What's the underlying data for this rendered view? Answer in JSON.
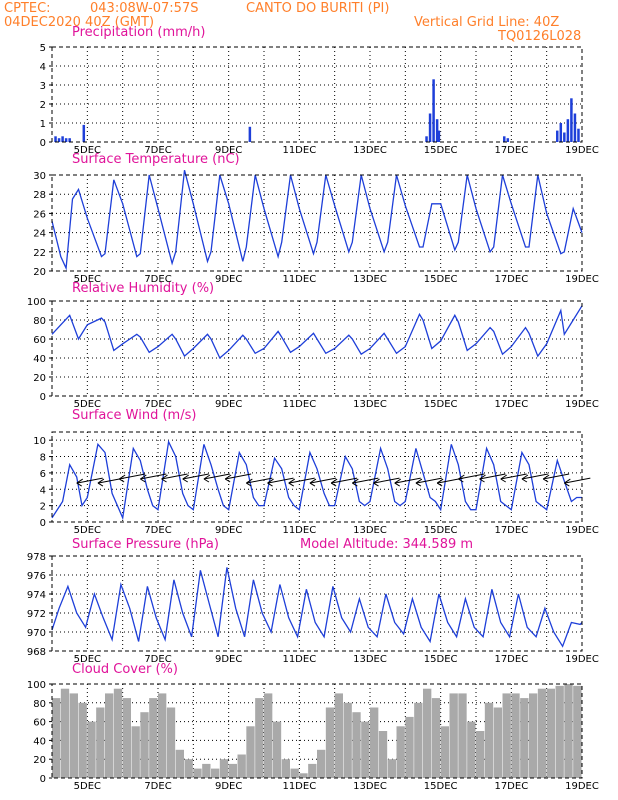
{
  "header": {
    "source": "CPTEC:",
    "coords": "043:08W-07:57S",
    "location": "CANTO DO BURITI (PI)",
    "run": "04DEC2020 40Z (GMT)",
    "grid_note": "Vertical Grid Line: 40Z",
    "model": "TQ0126L028"
  },
  "colors": {
    "header": "#ff7f2a",
    "panel_title": "#e0149a",
    "series": "#1e3fd9",
    "cloud": "#a9a9a9",
    "wind_arrow": "#000000"
  },
  "chart_data": [
    {
      "id": "precip",
      "type": "bar",
      "title": "Precipitation (mm/h)",
      "ylim": [
        0,
        5
      ],
      "yticks": [
        0,
        1,
        2,
        3,
        4,
        5
      ],
      "xticks": [
        "5DEC",
        "7DEC",
        "9DEC",
        "11DEC",
        "13DEC",
        "15DEC",
        "17DEC",
        "19DEC"
      ],
      "x": [
        4.1,
        4.2,
        4.3,
        4.4,
        4.5,
        4.9,
        9.6,
        14.6,
        14.7,
        14.8,
        14.9,
        14.95,
        16.8,
        16.9,
        18.3,
        18.4,
        18.5,
        18.6,
        18.7,
        18.8,
        18.9
      ],
      "values": [
        0.3,
        0.2,
        0.3,
        0.2,
        0.2,
        0.9,
        0.8,
        0.3,
        1.5,
        3.3,
        1.2,
        0.6,
        0.3,
        0.2,
        0.6,
        1.0,
        0.5,
        1.2,
        2.3,
        1.5,
        0.7
      ],
      "grid": true
    },
    {
      "id": "temp",
      "type": "line",
      "title": "Surface Temperature (nC)",
      "ylim": [
        20,
        30
      ],
      "yticks": [
        20,
        22,
        24,
        26,
        28,
        30
      ],
      "xticks": [
        "5DEC",
        "7DEC",
        "9DEC",
        "11DEC",
        "13DEC",
        "15DEC",
        "17DEC",
        "19DEC"
      ],
      "x": [
        4.0,
        4.25,
        4.4,
        4.58,
        4.75,
        5.0,
        5.4,
        5.5,
        5.75,
        6.0,
        6.4,
        6.5,
        6.75,
        7.0,
        7.4,
        7.5,
        7.75,
        8.0,
        8.4,
        8.5,
        8.75,
        9.0,
        9.4,
        9.5,
        9.75,
        10.0,
        10.4,
        10.5,
        10.75,
        11.0,
        11.4,
        11.5,
        11.75,
        12.0,
        12.4,
        12.5,
        12.75,
        13.0,
        13.4,
        13.5,
        13.75,
        14.0,
        14.4,
        14.5,
        14.75,
        15.0,
        15.4,
        15.5,
        15.75,
        16.0,
        16.4,
        16.5,
        16.75,
        17.0,
        17.4,
        17.5,
        17.75,
        18.0,
        18.4,
        18.5,
        18.75,
        19.0
      ],
      "values": [
        25.2,
        21.5,
        20.3,
        27.5,
        28.5,
        25.5,
        21.5,
        21.8,
        29.5,
        27.0,
        21.5,
        21.8,
        30.0,
        26.5,
        20.8,
        22.0,
        30.5,
        27.0,
        21.0,
        22.0,
        30.0,
        27.0,
        21.0,
        22.5,
        30.0,
        26.5,
        21.5,
        23.0,
        30.0,
        26.5,
        21.8,
        23.0,
        30.0,
        26.8,
        22.0,
        23.0,
        30.0,
        26.5,
        22.0,
        23.0,
        30.0,
        26.8,
        22.5,
        22.5,
        27.0,
        27.0,
        22.2,
        23.0,
        30.0,
        26.5,
        22.0,
        22.5,
        30.0,
        27.0,
        22.5,
        22.5,
        30.0,
        26.0,
        21.8,
        22.0,
        26.5,
        24.0
      ],
      "grid": true
    },
    {
      "id": "rh",
      "type": "line",
      "title": "Relative Humidity (%)",
      "ylim": [
        0,
        100
      ],
      "yticks": [
        0,
        20,
        40,
        60,
        80,
        100
      ],
      "xticks": [
        "5DEC",
        "7DEC",
        "9DEC",
        "11DEC",
        "13DEC",
        "15DEC",
        "17DEC",
        "19DEC"
      ],
      "x": [
        4.0,
        4.25,
        4.5,
        4.75,
        5.0,
        5.4,
        5.5,
        5.75,
        6.0,
        6.4,
        6.5,
        6.75,
        7.0,
        7.4,
        7.5,
        7.75,
        8.0,
        8.4,
        8.5,
        8.75,
        9.0,
        9.4,
        9.5,
        9.75,
        10.0,
        10.4,
        10.5,
        10.75,
        11.0,
        11.4,
        11.5,
        11.75,
        12.0,
        12.4,
        12.5,
        12.75,
        13.0,
        13.4,
        13.5,
        13.75,
        14.0,
        14.4,
        14.5,
        14.75,
        15.0,
        15.4,
        15.5,
        15.75,
        16.0,
        16.4,
        16.5,
        16.75,
        17.0,
        17.4,
        17.5,
        17.75,
        18.0,
        18.4,
        18.5,
        18.75,
        19.0
      ],
      "values": [
        65,
        75,
        85,
        60,
        75,
        82,
        78,
        48,
        55,
        65,
        62,
        46,
        52,
        65,
        60,
        42,
        50,
        65,
        60,
        40,
        48,
        64,
        60,
        45,
        50,
        68,
        62,
        46,
        52,
        66,
        60,
        45,
        50,
        64,
        60,
        44,
        50,
        66,
        60,
        45,
        52,
        86,
        80,
        50,
        58,
        85,
        78,
        48,
        55,
        72,
        68,
        44,
        52,
        72,
        66,
        42,
        55,
        90,
        65,
        80,
        95
      ],
      "grid": true
    },
    {
      "id": "wind",
      "type": "line",
      "title": "Surface Wind (m/s)",
      "ylim": [
        0,
        11
      ],
      "yticks": [
        0,
        2,
        4,
        6,
        8,
        10
      ],
      "xticks": [
        "5DEC",
        "7DEC",
        "9DEC",
        "11DEC",
        "13DEC",
        "15DEC",
        "17DEC",
        "19DEC"
      ],
      "x": [
        4.0,
        4.3,
        4.5,
        4.7,
        4.85,
        5.0,
        5.3,
        5.5,
        5.7,
        5.85,
        6.0,
        6.3,
        6.5,
        6.7,
        6.85,
        7.0,
        7.3,
        7.5,
        7.7,
        7.85,
        8.0,
        8.3,
        8.5,
        8.7,
        8.85,
        9.0,
        9.3,
        9.5,
        9.7,
        9.85,
        10.0,
        10.3,
        10.5,
        10.7,
        10.85,
        11.0,
        11.3,
        11.5,
        11.7,
        11.85,
        12.0,
        12.3,
        12.5,
        12.7,
        12.85,
        13.0,
        13.3,
        13.5,
        13.7,
        13.85,
        14.0,
        14.3,
        14.5,
        14.7,
        14.85,
        15.0,
        15.3,
        15.5,
        15.7,
        15.85,
        16.0,
        16.3,
        16.5,
        16.7,
        16.85,
        17.0,
        17.3,
        17.5,
        17.7,
        17.85,
        18.0,
        18.3,
        18.5,
        18.7,
        18.85,
        19.0
      ],
      "values": [
        0.5,
        2.5,
        7.0,
        5.5,
        2.0,
        3.0,
        9.5,
        8.5,
        3.5,
        2.0,
        0.5,
        9.0,
        7.5,
        4.0,
        2.0,
        1.5,
        9.8,
        8.0,
        3.5,
        2.0,
        1.5,
        9.5,
        7.0,
        4.0,
        2.0,
        1.5,
        8.5,
        7.0,
        3.0,
        2.0,
        2.0,
        7.8,
        6.5,
        3.0,
        2.0,
        1.5,
        8.5,
        6.5,
        3.5,
        2.0,
        2.0,
        8.0,
        6.5,
        2.5,
        2.0,
        2.5,
        9.0,
        6.5,
        2.5,
        2.0,
        2.5,
        9.0,
        6.0,
        3.0,
        2.5,
        1.5,
        9.5,
        7.0,
        2.5,
        1.5,
        1.5,
        9.0,
        7.0,
        2.5,
        2.0,
        1.5,
        8.5,
        7.0,
        2.5,
        2.0,
        1.5,
        7.5,
        5.0,
        2.5,
        3.0,
        3.0
      ],
      "arrows_x": [
        4.7,
        5.3,
        5.9,
        6.5,
        7.1,
        7.7,
        8.3,
        8.9,
        9.5,
        10.1,
        10.7,
        11.3,
        11.9,
        12.5,
        13.1,
        13.7,
        14.3,
        14.9,
        15.5,
        16.1,
        16.7,
        17.3,
        17.9,
        18.5
      ],
      "arrows_y": [
        5.0,
        5.0,
        5.5,
        5.5,
        5.5,
        5.5,
        5.5,
        5.5,
        5.0,
        5.0,
        5.0,
        5.0,
        5.0,
        5.0,
        5.0,
        5.0,
        5.0,
        5.0,
        5.5,
        5.5,
        5.5,
        5.5,
        5.5,
        5.0
      ],
      "grid": true
    },
    {
      "id": "pres",
      "type": "line",
      "title": "Surface Pressure (hPa)",
      "annotation": "Model Altitude: 344.589 m",
      "ylim": [
        968,
        978
      ],
      "yticks": [
        968,
        970,
        972,
        974,
        976,
        978
      ],
      "xticks": [
        "5DEC",
        "7DEC",
        "9DEC",
        "11DEC",
        "13DEC",
        "15DEC",
        "17DEC",
        "19DEC"
      ],
      "x": [
        4.0,
        4.2,
        4.45,
        4.7,
        4.95,
        5.2,
        5.45,
        5.7,
        5.95,
        6.2,
        6.45,
        6.7,
        6.95,
        7.2,
        7.45,
        7.7,
        7.95,
        8.2,
        8.45,
        8.7,
        8.95,
        9.2,
        9.45,
        9.7,
        9.95,
        10.2,
        10.45,
        10.7,
        10.95,
        11.2,
        11.45,
        11.7,
        11.95,
        12.2,
        12.45,
        12.7,
        12.95,
        13.2,
        13.45,
        13.7,
        13.95,
        14.2,
        14.45,
        14.7,
        14.95,
        15.2,
        15.45,
        15.7,
        15.95,
        16.2,
        16.45,
        16.7,
        16.95,
        17.2,
        17.45,
        17.7,
        17.95,
        18.2,
        18.45,
        18.7,
        18.95,
        19.0
      ],
      "values": [
        970.2,
        972.5,
        974.8,
        972.0,
        970.5,
        974.0,
        971.5,
        969.2,
        975.0,
        972.5,
        969.0,
        974.8,
        971.5,
        969.2,
        975.5,
        972.0,
        969.5,
        976.5,
        973.0,
        969.5,
        976.8,
        972.5,
        969.5,
        975.5,
        972.0,
        970.0,
        975.0,
        971.5,
        969.5,
        974.5,
        971.0,
        969.5,
        974.8,
        971.5,
        970.0,
        973.5,
        970.5,
        969.5,
        974.0,
        971.0,
        969.8,
        973.5,
        970.5,
        969.0,
        974.0,
        971.0,
        969.5,
        973.5,
        970.5,
        969.5,
        974.5,
        971.0,
        969.5,
        974.0,
        970.5,
        969.5,
        972.5,
        970.0,
        968.5,
        971.0,
        970.8,
        971.0
      ],
      "grid": true
    },
    {
      "id": "cloud",
      "type": "bar",
      "title": "Cloud Cover (%)",
      "ylim": [
        0,
        100
      ],
      "yticks": [
        0,
        20,
        40,
        60,
        80,
        100
      ],
      "xticks": [
        "5DEC",
        "7DEC",
        "9DEC",
        "11DEC",
        "13DEC",
        "15DEC",
        "17DEC",
        "19DEC"
      ],
      "x": [
        4.0,
        4.25,
        4.5,
        4.75,
        5.0,
        5.25,
        5.5,
        5.75,
        6.0,
        6.25,
        6.5,
        6.75,
        7.0,
        7.25,
        7.5,
        7.75,
        8.0,
        8.25,
        8.5,
        8.75,
        9.0,
        9.25,
        9.5,
        9.75,
        10.0,
        10.25,
        10.5,
        10.75,
        11.0,
        11.25,
        11.5,
        11.75,
        12.0,
        12.25,
        12.5,
        12.75,
        13.0,
        13.25,
        13.5,
        13.75,
        14.0,
        14.25,
        14.5,
        14.75,
        15.0,
        15.25,
        15.5,
        15.75,
        16.0,
        16.25,
        16.5,
        16.75,
        17.0,
        17.25,
        17.5,
        17.75,
        18.0,
        18.25,
        18.5,
        18.75
      ],
      "values": [
        85,
        95,
        90,
        80,
        60,
        75,
        90,
        95,
        85,
        55,
        70,
        85,
        90,
        75,
        30,
        20,
        10,
        15,
        10,
        20,
        15,
        25,
        55,
        85,
        90,
        60,
        20,
        10,
        5,
        15,
        30,
        75,
        90,
        80,
        70,
        60,
        75,
        50,
        20,
        55,
        65,
        80,
        95,
        85,
        55,
        90,
        90,
        60,
        50,
        80,
        75,
        90,
        90,
        85,
        90,
        95,
        95,
        98,
        100,
        98
      ],
      "grid": true
    }
  ]
}
